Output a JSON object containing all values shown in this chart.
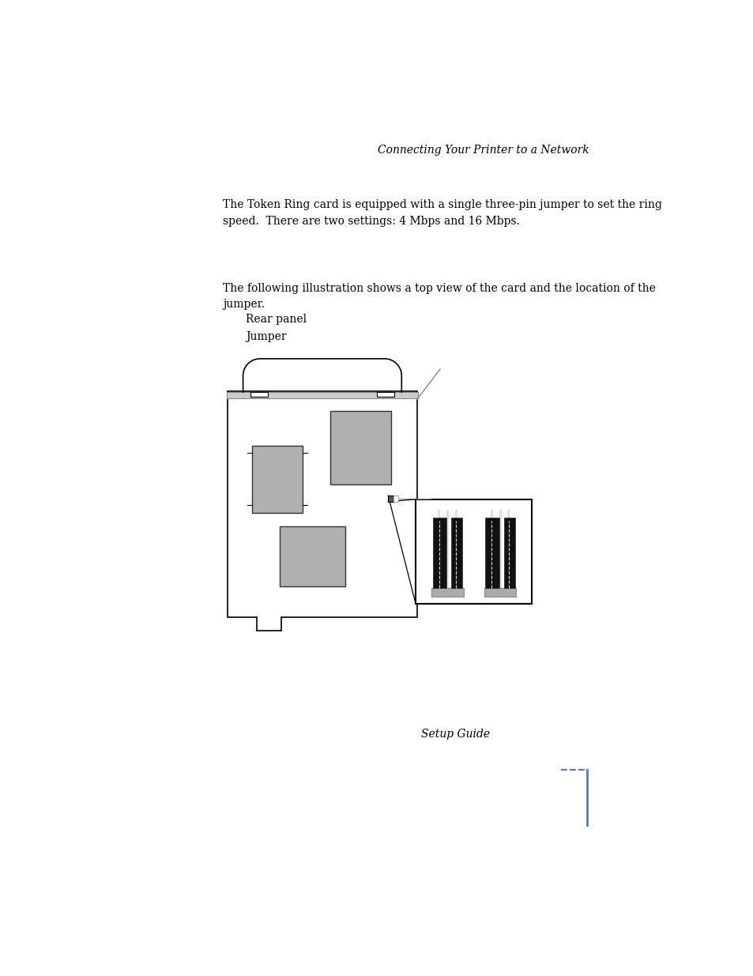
{
  "bg_color": "#ffffff",
  "header_text": "Connecting Your Printer to a Network",
  "footer_text": "Setup Guide",
  "body_text1": "The Token Ring card is equipped with a single three-pin jumper to set the ring\nspeed.  There are two settings: 4 Mbps and 16 Mbps.",
  "body_text2": "The following illustration shows a top view of the card and the location of the\njumper.",
  "label_rear": "Rear panel",
  "label_jumper": "Jumper",
  "chip_color": "#b0b0b0",
  "card_border": "#000000"
}
